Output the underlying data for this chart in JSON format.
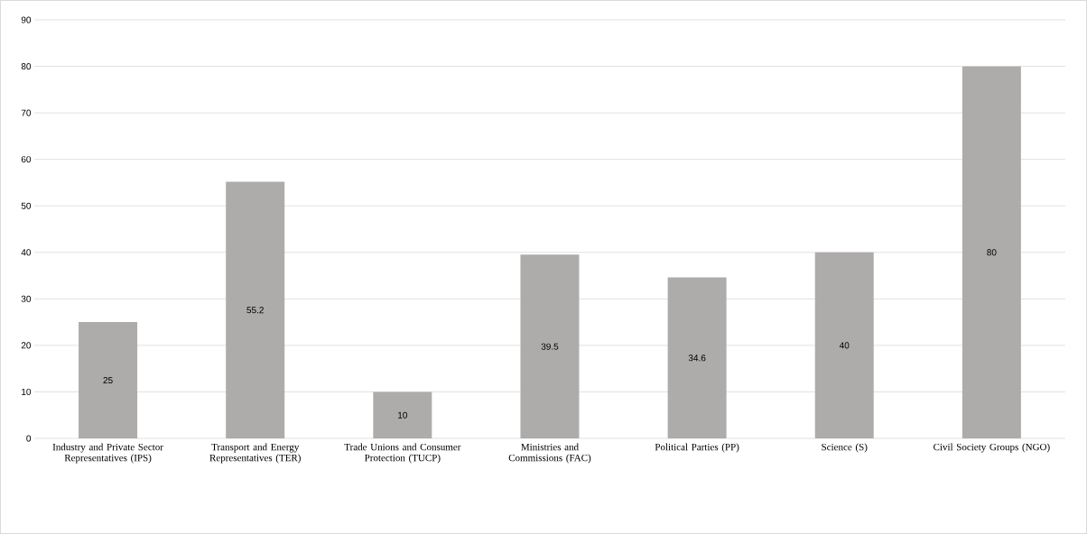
{
  "chart_data": {
    "type": "bar",
    "categories": [
      "Industry and Private Sector Representatives (IPS)",
      "Transport and Energy Representatives (TER)",
      "Trade Unions and Consumer Protection (TUCP)",
      "Ministries and Commissions (FAC)",
      "Political Parties (PP)",
      "Science (S)",
      "Civil Society Groups (NGO)"
    ],
    "values": [
      25,
      55.2,
      10,
      39.5,
      34.6,
      40,
      80
    ],
    "color": "#aeabab",
    "ylim": [
      0,
      90
    ],
    "yticks": [
      0,
      10,
      20,
      30,
      40,
      50,
      60,
      70,
      80,
      90
    ],
    "grid": "y",
    "data_labels": true
  }
}
